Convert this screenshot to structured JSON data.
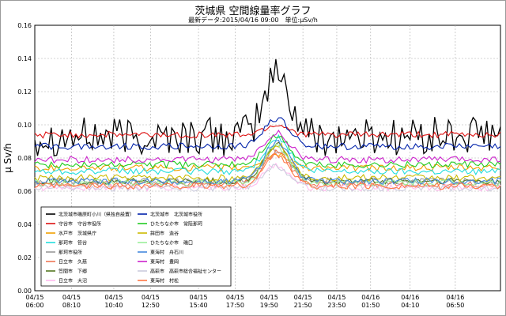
{
  "header": {
    "title": "茨城県 空間線量率グラフ",
    "subtitle": "最新データ:2015/04/16 09:00　単位:μSv/h"
  },
  "chart_data": {
    "type": "line",
    "ylabel": "μ Sv/h",
    "ylim": [
      0,
      0.16
    ],
    "yticks": [
      "0.00",
      "0.02",
      "0.04",
      "0.06",
      "0.08",
      "0.10",
      "0.12",
      "0.14",
      "0.16"
    ],
    "x_range_hours": [
      0,
      27.5
    ],
    "x_ticks": [
      {
        "t": 0,
        "label": [
          "04/15",
          "06:00"
        ]
      },
      {
        "t": 2.1667,
        "label": [
          "04/15",
          "08:10"
        ]
      },
      {
        "t": 4.6667,
        "label": [
          "04/15",
          "10:40"
        ]
      },
      {
        "t": 6.8333,
        "label": [
          "04/15",
          "12:50"
        ]
      },
      {
        "t": 9.6667,
        "label": [
          "04/15",
          "15:40"
        ]
      },
      {
        "t": 11.8333,
        "label": [
          "04/15",
          "17:50"
        ]
      },
      {
        "t": 13.8333,
        "label": [
          "04/15",
          "19:50"
        ]
      },
      {
        "t": 15.8333,
        "label": [
          "04/15",
          "21:50"
        ]
      },
      {
        "t": 17.8333,
        "label": [
          "04/15",
          "23:50"
        ]
      },
      {
        "t": 19.8333,
        "label": [
          "04/16",
          "01:50"
        ]
      },
      {
        "t": 22.1667,
        "label": [
          "04/16",
          "04:10"
        ]
      },
      {
        "t": 24.8333,
        "label": [
          "04/16",
          "06:50"
        ]
      }
    ],
    "grid": true,
    "legend_placement": "bottom-left",
    "series": [
      {
        "name": "北茨城市磯原町小川（県独自設置）",
        "color": "#000000",
        "base": 0.093,
        "peak": 0.131,
        "noise": 0.012
      },
      {
        "name": "守谷市　守谷市役所",
        "color": "#dd1111",
        "base": 0.094,
        "peak": 0.1,
        "noise": 0.002
      },
      {
        "name": "水戸市　茨城県庁",
        "color": "#f0a000",
        "base": 0.074,
        "peak": 0.082,
        "noise": 0.002
      },
      {
        "name": "那珂市　笹谷",
        "color": "#22dddd",
        "base": 0.072,
        "peak": 0.092,
        "noise": 0.002
      },
      {
        "name": "那珂市役所",
        "color": "#999999",
        "base": 0.066,
        "peak": 0.085,
        "noise": 0.002
      },
      {
        "name": "日立市　久慈",
        "color": "#ee7755",
        "base": 0.064,
        "peak": 0.083,
        "noise": 0.002
      },
      {
        "name": "笠間市　下郷",
        "color": "#557722",
        "base": 0.066,
        "peak": 0.088,
        "noise": 0.002
      },
      {
        "name": "日立市　大沼",
        "color": "#ffbbee",
        "base": 0.062,
        "peak": 0.076,
        "noise": 0.002
      },
      {
        "name": "北茨城市　北茨城市役所",
        "color": "#0022aa",
        "base": 0.087,
        "peak": 0.104,
        "noise": 0.002
      },
      {
        "name": "ひたちなか市　常陸那珂",
        "color": "#22cc22",
        "base": 0.076,
        "peak": 0.093,
        "noise": 0.002
      },
      {
        "name": "鉾田市　造谷",
        "color": "#ccbb00",
        "base": 0.068,
        "peak": 0.088,
        "noise": 0.002
      },
      {
        "name": "ひたちなか市　磯口",
        "color": "#99ee99",
        "base": 0.065,
        "peak": 0.087,
        "noise": 0.002
      },
      {
        "name": "東海村　舟石川",
        "color": "#4488dd",
        "base": 0.066,
        "peak": 0.09,
        "noise": 0.002
      },
      {
        "name": "東海村　豊岡",
        "color": "#cc22cc",
        "base": 0.079,
        "peak": 0.095,
        "noise": 0.002
      },
      {
        "name": "高萩市　高萩市総合福祉センター",
        "color": "#ccccdd",
        "base": 0.062,
        "peak": 0.075,
        "noise": 0.002
      },
      {
        "name": "東海村　村松",
        "color": "#ff7744",
        "base": 0.063,
        "peak": 0.082,
        "noise": 0.002
      }
    ]
  }
}
